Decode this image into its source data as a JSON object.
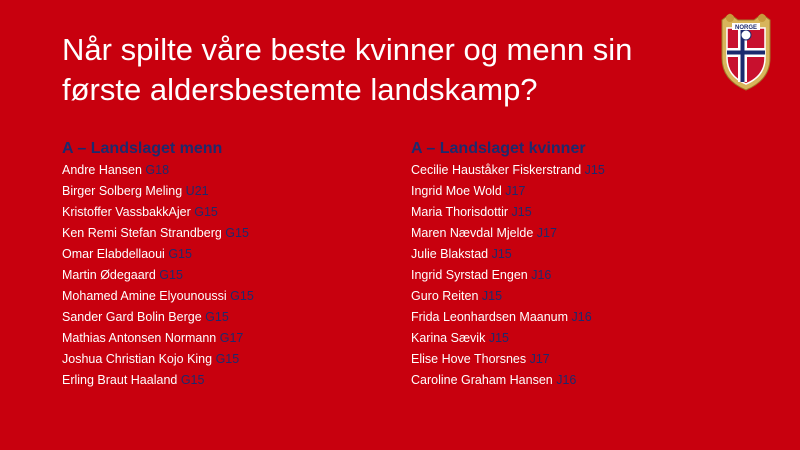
{
  "title_lines": [
    "Når spilte våre beste kvinner og menn sin",
    "første aldersbestemte landskamp?"
  ],
  "logo": {
    "text": "NORGE"
  },
  "colors": {
    "background": "#c8000e",
    "heading": "#1c2a6e",
    "text": "#ffffff",
    "age": "#1c2a6e"
  },
  "men": {
    "heading": "A – Landslaget menn",
    "players": [
      {
        "name": "Andre Hansen ",
        "age": "G18"
      },
      {
        "name": "Birger Solberg Meling ",
        "age": "U21"
      },
      {
        "name": "Kristoffer VassbakkAjer ",
        "age": "G15"
      },
      {
        "name": "Ken Remi Stefan Strandberg ",
        "age": "G15"
      },
      {
        "name": "Omar Elabdellaoui ",
        "age": "G15"
      },
      {
        "name": "Martin Ødegaard  ",
        "age": "G15"
      },
      {
        "name": "Mohamed Amine Elyounoussi ",
        "age": "G15"
      },
      {
        "name": "Sander Gard Bolin Berge ",
        "age": "G15"
      },
      {
        "name": "Mathias Antonsen Normann ",
        "age": "G17"
      },
      {
        "name": "Joshua Christian Kojo King  ",
        "age": "G15"
      },
      {
        "name": "Erling Braut Haaland  ",
        "age": "G15"
      }
    ]
  },
  "women": {
    "heading": "A – Landslaget kvinner",
    "players": [
      {
        "name": "Cecilie Hauståker Fiskerstrand ",
        "age": "J15"
      },
      {
        "name": "Ingrid Moe Wold ",
        "age": "J17"
      },
      {
        "name": "Maria Thorisdottir ",
        "age": "J15"
      },
      {
        "name": "Maren Nævdal Mjelde ",
        "age": "J17"
      },
      {
        "name": "Julie Blakstad ",
        "age": "J15"
      },
      {
        "name": "Ingrid Syrstad Engen ",
        "age": "J16"
      },
      {
        "name": "Guro Reiten ",
        "age": "J15"
      },
      {
        "name": "Frida Leonhardsen Maanum ",
        "age": "J16"
      },
      {
        "name": "Karina Sævik ",
        "age": "J15"
      },
      {
        "name": "Elise Hove Thorsnes ",
        "age": "J17"
      },
      {
        "name": "Caroline Graham Hansen ",
        "age": "J16"
      }
    ]
  }
}
